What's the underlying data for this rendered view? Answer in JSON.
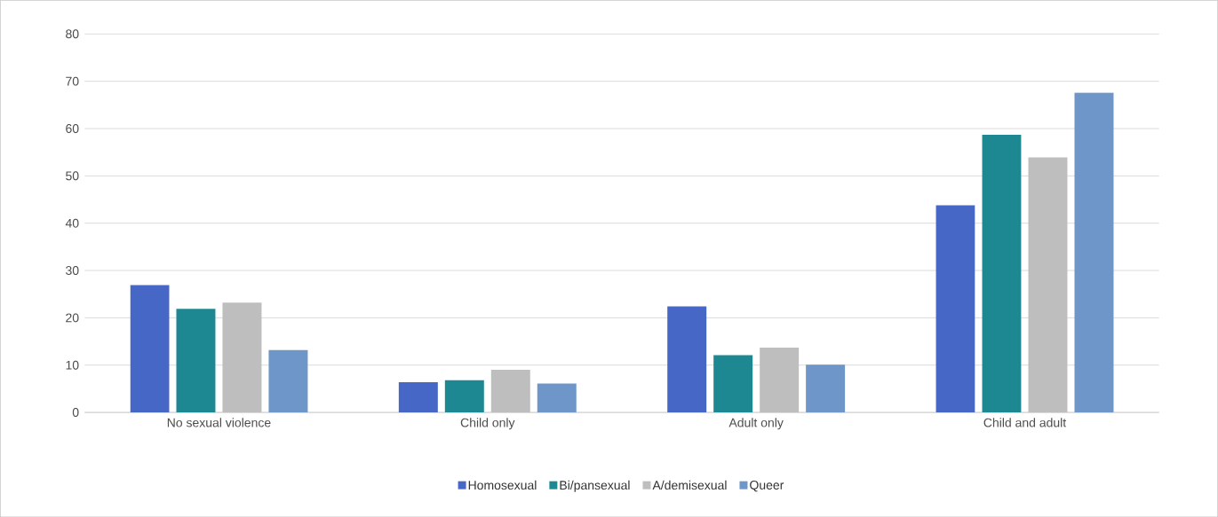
{
  "chart_data": {
    "type": "bar",
    "categories": [
      "No sexual violence",
      "Child only",
      "Adult only",
      "Child and adult"
    ],
    "series": [
      {
        "name": "Homosexual",
        "color": "#4767c6",
        "values": [
          26.9,
          6.4,
          22.4,
          43.8
        ]
      },
      {
        "name": "Bi/pansexual",
        "color": "#1e8892",
        "values": [
          21.9,
          6.8,
          12.1,
          58.7
        ]
      },
      {
        "name": "A/demisexual",
        "color": "#bebebe",
        "values": [
          23.2,
          9.0,
          13.7,
          53.9
        ]
      },
      {
        "name": "Queer",
        "color": "#6e96c9",
        "values": [
          13.2,
          6.1,
          10.1,
          67.6
        ]
      }
    ],
    "ylim": [
      0,
      80
    ],
    "yticks": [
      0,
      10,
      20,
      30,
      40,
      50,
      60,
      70,
      80
    ],
    "grid": "y",
    "legend": "bottom"
  }
}
